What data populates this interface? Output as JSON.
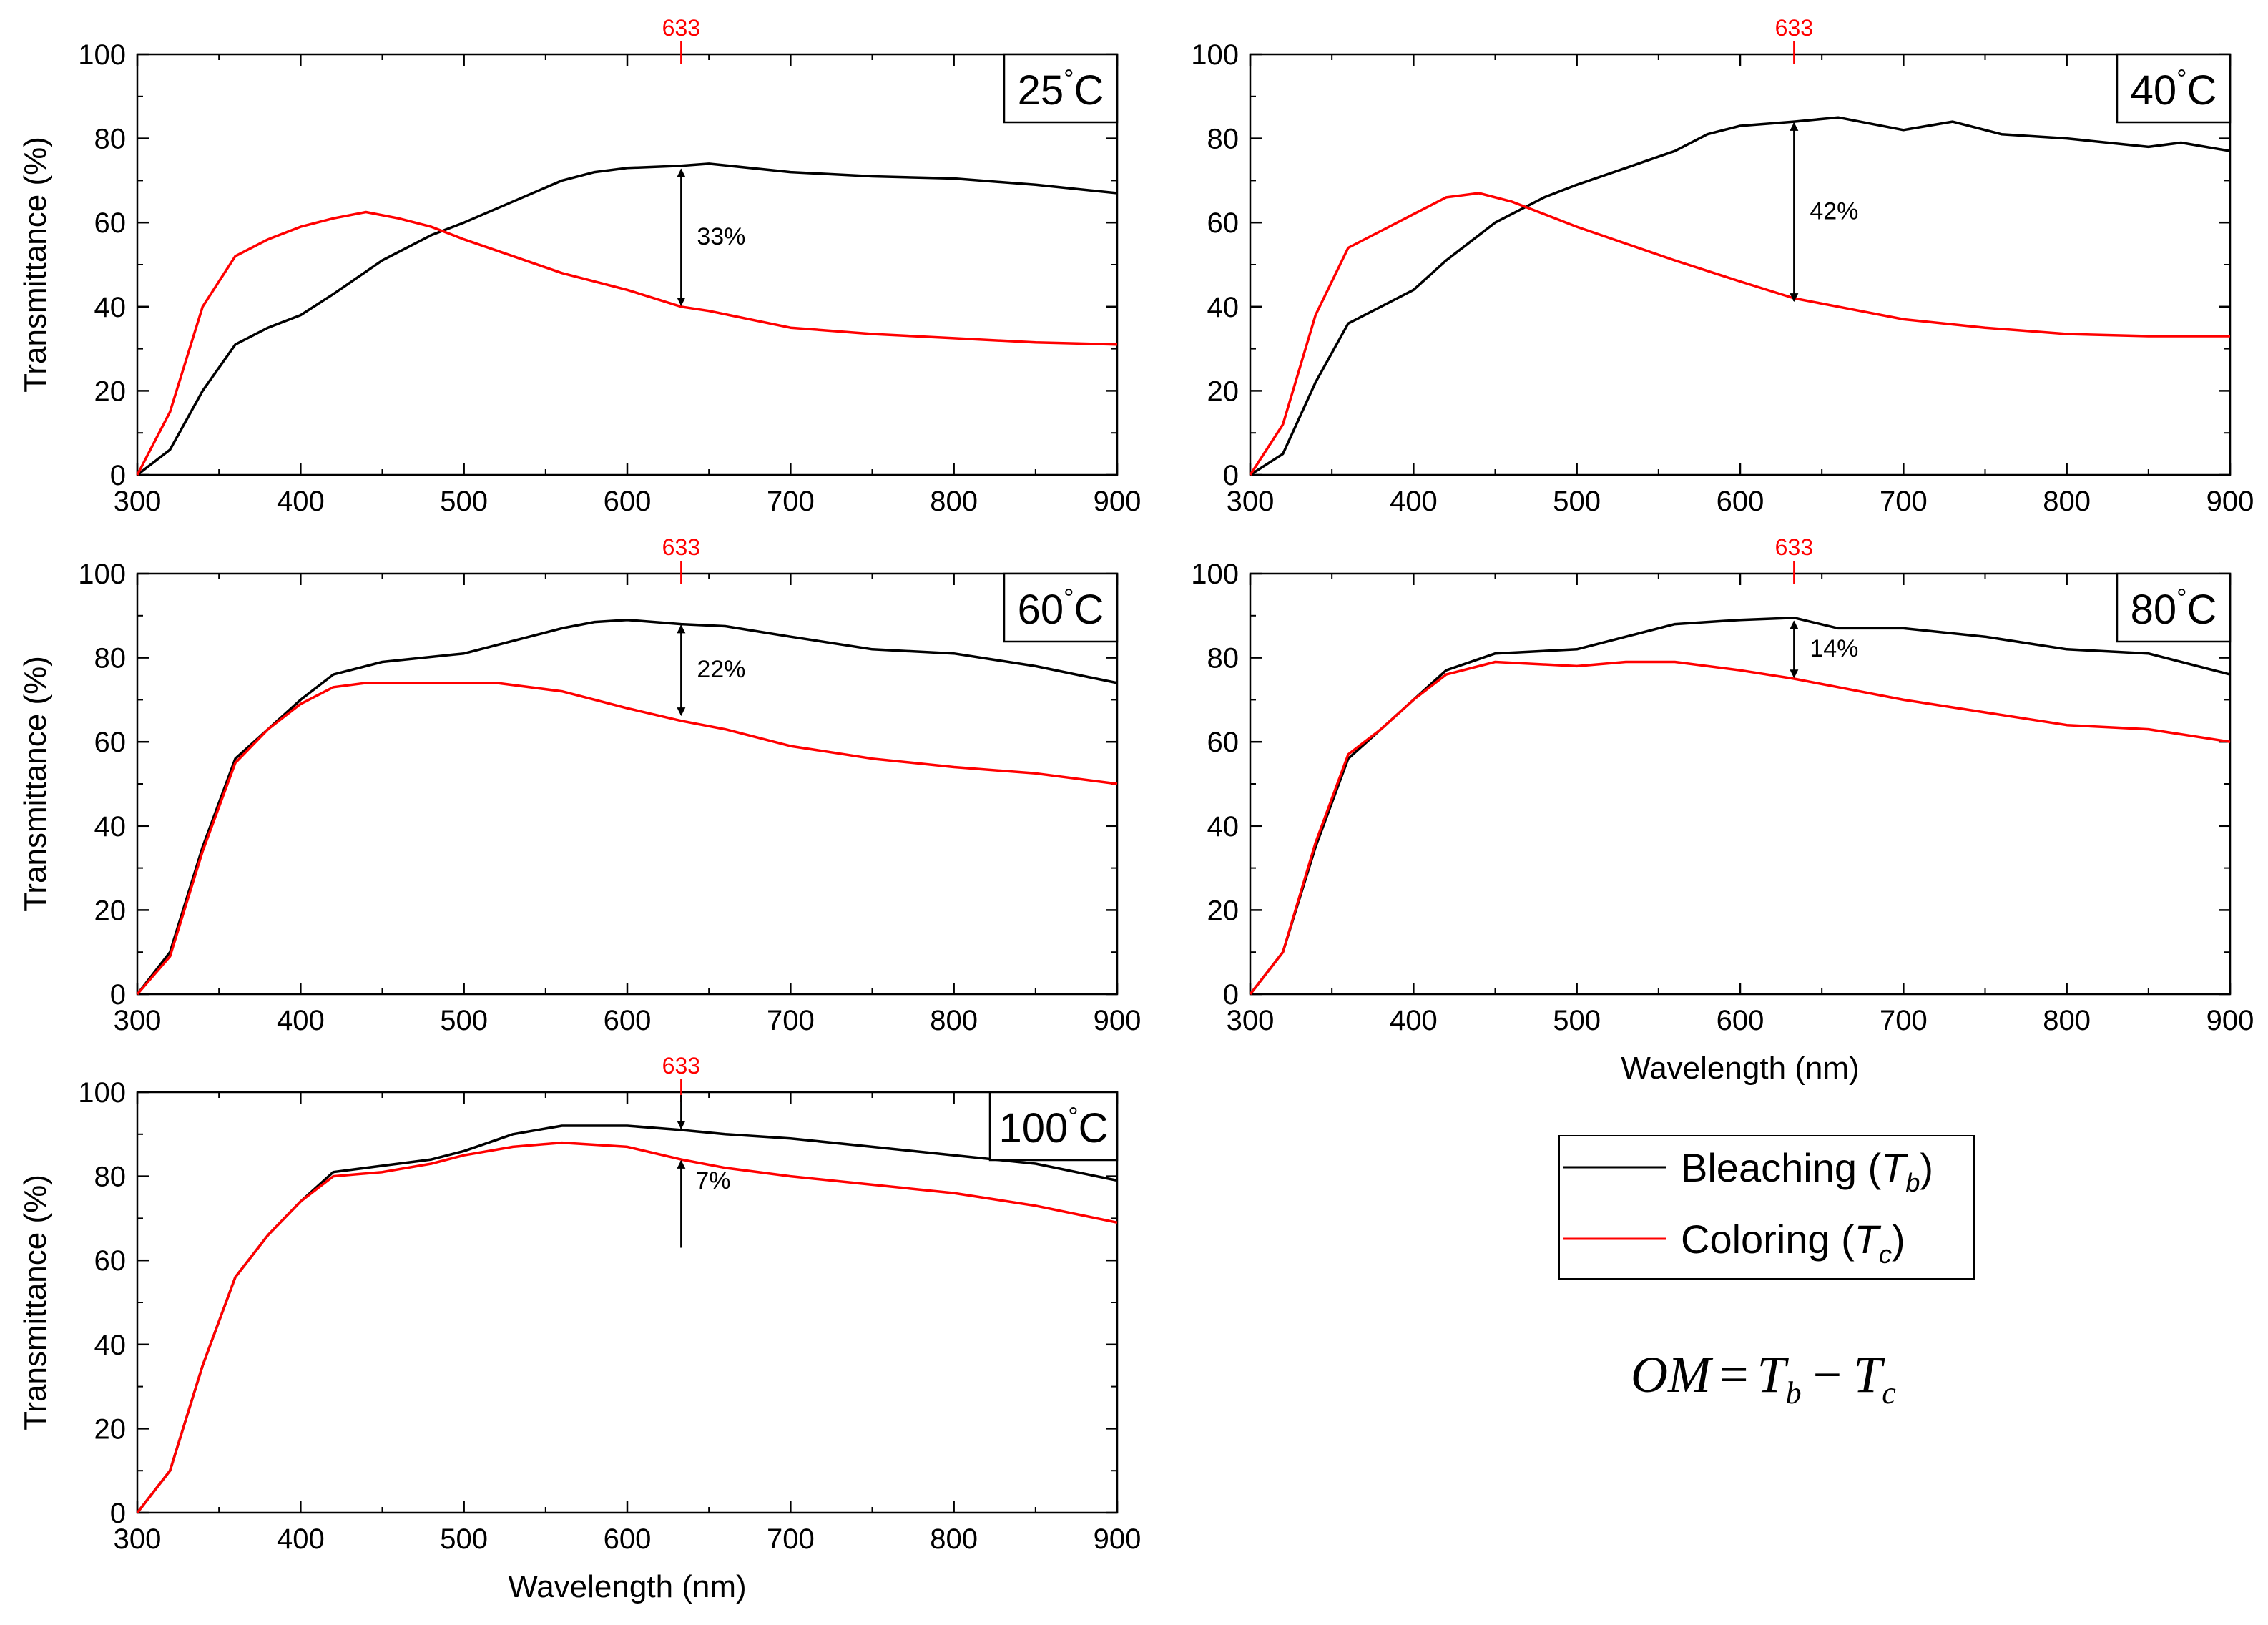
{
  "colors": {
    "bleaching": "#000000",
    "coloring": "#ff0000",
    "marker": "#ff0000"
  },
  "legend": {
    "items": [
      {
        "label": "Bleaching (",
        "var": "T",
        "sub": "b",
        "close": ")",
        "color": "#000000"
      },
      {
        "label": "Coloring (",
        "var": "T",
        "sub": "c",
        "close": ")",
        "color": "#ff0000"
      }
    ]
  },
  "equation": {
    "lhs": "OM",
    "eq": "=",
    "t1": "T",
    "s1": "b",
    "minus": "−",
    "t2": "T",
    "s2": "c"
  },
  "chart_data": [
    {
      "type": "line",
      "temperature": "25",
      "unit": "°C",
      "xlabel": "",
      "ylabel": "Transmittance (%)",
      "xlim": [
        300,
        900
      ],
      "ylim": [
        0,
        100
      ],
      "xticks": [
        300,
        400,
        500,
        600,
        700,
        800,
        900
      ],
      "yticks": [
        0,
        20,
        40,
        60,
        80,
        100
      ],
      "marker": {
        "x": 633,
        "label": "633"
      },
      "om": {
        "label": "33%",
        "y_top": 73,
        "y_bottom": 40
      },
      "series": [
        {
          "name": "Bleaching (Tb)",
          "color": "#000000",
          "x": [
            300,
            320,
            340,
            360,
            380,
            400,
            420,
            450,
            480,
            500,
            530,
            560,
            580,
            600,
            633,
            650,
            700,
            750,
            800,
            850,
            900
          ],
          "y": [
            0,
            6,
            20,
            31,
            35,
            38,
            43,
            51,
            57,
            60,
            65,
            70,
            72,
            73,
            73.5,
            74,
            72,
            71,
            70.5,
            69,
            67
          ]
        },
        {
          "name": "Coloring (Tc)",
          "color": "#ff0000",
          "x": [
            300,
            320,
            340,
            360,
            380,
            400,
            420,
            440,
            460,
            480,
            500,
            530,
            560,
            600,
            633,
            650,
            700,
            750,
            800,
            850,
            900
          ],
          "y": [
            0,
            15,
            40,
            52,
            56,
            59,
            61,
            62.5,
            61,
            59,
            56,
            52,
            48,
            44,
            40,
            39,
            35,
            33.5,
            32.5,
            31.5,
            31
          ]
        }
      ]
    },
    {
      "type": "line",
      "temperature": "40",
      "unit": "°C",
      "xlabel": "",
      "ylabel": "",
      "xlim": [
        300,
        900
      ],
      "ylim": [
        0,
        100
      ],
      "xticks": [
        300,
        400,
        500,
        600,
        700,
        800,
        900
      ],
      "yticks": [
        0,
        20,
        40,
        60,
        80,
        100
      ],
      "marker": {
        "x": 633,
        "label": "633"
      },
      "om": {
        "label": "42%",
        "y_top": 84,
        "y_bottom": 41
      },
      "series": [
        {
          "name": "Bleaching (Tb)",
          "color": "#000000",
          "x": [
            300,
            320,
            340,
            360,
            380,
            400,
            420,
            450,
            480,
            500,
            530,
            560,
            580,
            600,
            633,
            660,
            700,
            730,
            760,
            800,
            850,
            870,
            900
          ],
          "y": [
            0,
            5,
            22,
            36,
            40,
            44,
            51,
            60,
            66,
            69,
            73,
            77,
            81,
            83,
            84,
            85,
            82,
            84,
            81,
            80,
            78,
            79,
            77
          ]
        },
        {
          "name": "Coloring (Tc)",
          "color": "#ff0000",
          "x": [
            300,
            320,
            340,
            360,
            380,
            400,
            420,
            440,
            460,
            480,
            500,
            530,
            560,
            600,
            633,
            660,
            700,
            750,
            800,
            850,
            900
          ],
          "y": [
            0,
            12,
            38,
            54,
            58,
            62,
            66,
            67,
            65,
            62,
            59,
            55,
            51,
            46,
            42,
            40,
            37,
            35,
            33.5,
            33,
            33
          ]
        }
      ]
    },
    {
      "type": "line",
      "temperature": "60",
      "unit": "°C",
      "xlabel": "",
      "ylabel": "Transmittance (%)",
      "xlim": [
        300,
        900
      ],
      "ylim": [
        0,
        100
      ],
      "xticks": [
        300,
        400,
        500,
        600,
        700,
        800,
        900
      ],
      "yticks": [
        0,
        20,
        40,
        60,
        80,
        100
      ],
      "marker": {
        "x": 633,
        "label": "633"
      },
      "om": {
        "label": "22%",
        "y_top": 88,
        "y_bottom": 66
      },
      "series": [
        {
          "name": "Bleaching (Tb)",
          "color": "#000000",
          "x": [
            300,
            320,
            340,
            360,
            380,
            400,
            420,
            450,
            500,
            530,
            560,
            580,
            600,
            633,
            660,
            700,
            750,
            800,
            850,
            900
          ],
          "y": [
            0,
            10,
            35,
            56,
            63,
            70,
            76,
            79,
            81,
            84,
            87,
            88.5,
            89,
            88,
            87.5,
            85,
            82,
            81,
            78,
            74
          ]
        },
        {
          "name": "Coloring (Tc)",
          "color": "#ff0000",
          "x": [
            300,
            320,
            340,
            360,
            380,
            400,
            420,
            440,
            480,
            520,
            560,
            600,
            633,
            660,
            700,
            750,
            800,
            850,
            900
          ],
          "y": [
            0,
            9,
            34,
            55,
            63,
            69,
            73,
            74,
            74,
            74,
            72,
            68,
            65,
            63,
            59,
            56,
            54,
            52.5,
            50
          ]
        }
      ]
    },
    {
      "type": "line",
      "temperature": "80",
      "unit": "°C",
      "xlabel": "Wavelength (nm)",
      "ylabel": "",
      "xlim": [
        300,
        900
      ],
      "ylim": [
        0,
        100
      ],
      "xticks": [
        300,
        400,
        500,
        600,
        700,
        800,
        900
      ],
      "yticks": [
        0,
        20,
        40,
        60,
        80,
        100
      ],
      "marker": {
        "x": 633,
        "label": "633"
      },
      "om": {
        "label": "14%",
        "y_top": 89,
        "y_bottom": 75
      },
      "series": [
        {
          "name": "Bleaching (Tb)",
          "color": "#000000",
          "x": [
            300,
            320,
            340,
            360,
            380,
            400,
            420,
            450,
            500,
            530,
            560,
            600,
            633,
            660,
            700,
            750,
            800,
            850,
            900
          ],
          "y": [
            0,
            10,
            35,
            56,
            63,
            70,
            77,
            81,
            82,
            85,
            88,
            89,
            89.5,
            87,
            87,
            85,
            82,
            81,
            76
          ]
        },
        {
          "name": "Coloring (Tc)",
          "color": "#ff0000",
          "x": [
            300,
            320,
            340,
            360,
            380,
            400,
            420,
            450,
            500,
            530,
            560,
            600,
            633,
            660,
            700,
            750,
            800,
            850,
            900
          ],
          "y": [
            0,
            10,
            36,
            57,
            63,
            70,
            76,
            79,
            78,
            79,
            79,
            77,
            75,
            73,
            70,
            67,
            64,
            63,
            60
          ]
        }
      ]
    },
    {
      "type": "line",
      "temperature": "100",
      "unit": "°C",
      "xlabel": "Wavelength (nm)",
      "ylabel": "Transmittance (%)",
      "xlim": [
        300,
        900
      ],
      "ylim": [
        0,
        100
      ],
      "xticks": [
        300,
        400,
        500,
        600,
        700,
        800,
        900
      ],
      "yticks": [
        0,
        20,
        40,
        60,
        80,
        100
      ],
      "marker": {
        "x": 633,
        "label": "633"
      },
      "om": {
        "label": "7%",
        "y_top": 91,
        "y_bottom": 84
      },
      "series": [
        {
          "name": "Bleaching (Tb)",
          "color": "#000000",
          "x": [
            300,
            320,
            340,
            360,
            380,
            400,
            420,
            450,
            480,
            500,
            530,
            560,
            600,
            633,
            660,
            700,
            750,
            800,
            850,
            900
          ],
          "y": [
            0,
            10,
            35,
            56,
            66,
            74,
            81,
            82.5,
            84,
            86,
            90,
            92,
            92,
            91,
            90,
            89,
            87,
            85,
            83,
            79
          ]
        },
        {
          "name": "Coloring (Tc)",
          "color": "#ff0000",
          "x": [
            300,
            320,
            340,
            360,
            380,
            400,
            420,
            450,
            480,
            500,
            530,
            560,
            600,
            633,
            660,
            700,
            750,
            800,
            850,
            900
          ],
          "y": [
            0,
            10,
            35,
            56,
            66,
            74,
            80,
            81,
            83,
            85,
            87,
            88,
            87,
            84,
            82,
            80,
            78,
            76,
            73,
            69
          ]
        }
      ]
    }
  ]
}
